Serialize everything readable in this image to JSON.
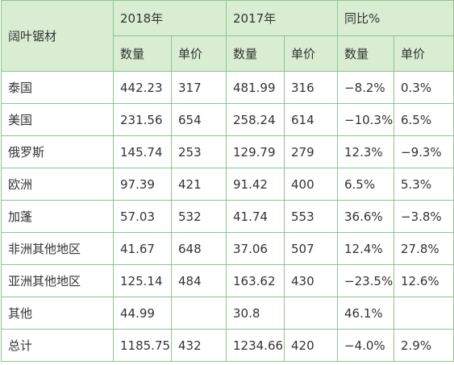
{
  "header": {
    "corner": "阔叶锯材",
    "groups": [
      "2018年",
      "2017年",
      "同比%"
    ],
    "subheaders": [
      "数量",
      "单价",
      "数量",
      "单价",
      "数量",
      "单价"
    ]
  },
  "table": {
    "rows": [
      [
        "泰国",
        "442.23",
        "317",
        "481.99",
        "316",
        "−8.2%",
        "0.3%"
      ],
      [
        "美国",
        "231.56",
        "654",
        "258.24",
        "614",
        "−10.3%",
        "6.5%"
      ],
      [
        "俄罗斯",
        "145.74",
        "253",
        "129.79",
        "279",
        "12.3%",
        "−9.3%"
      ],
      [
        "欧洲",
        "97.39",
        "421",
        "91.42",
        "400",
        "6.5%",
        "5.3%"
      ],
      [
        "加蓬",
        "57.03",
        "532",
        "41.74",
        "553",
        "36.6%",
        "−3.8%"
      ],
      [
        "非洲其他地区",
        "41.67",
        "648",
        "37.06",
        "507",
        "12.4%",
        "27.8%"
      ],
      [
        "亚洲其他地区",
        "125.14",
        "484",
        "163.62",
        "430",
        "−23.5%",
        "12.6%"
      ],
      [
        "其他",
        "44.99",
        null,
        "30.8",
        null,
        "46.1%",
        null
      ],
      [
        "总计",
        "1185.75",
        "432",
        "1234.66",
        "420",
        "−4.0%",
        "2.9%"
      ]
    ]
  }
}
